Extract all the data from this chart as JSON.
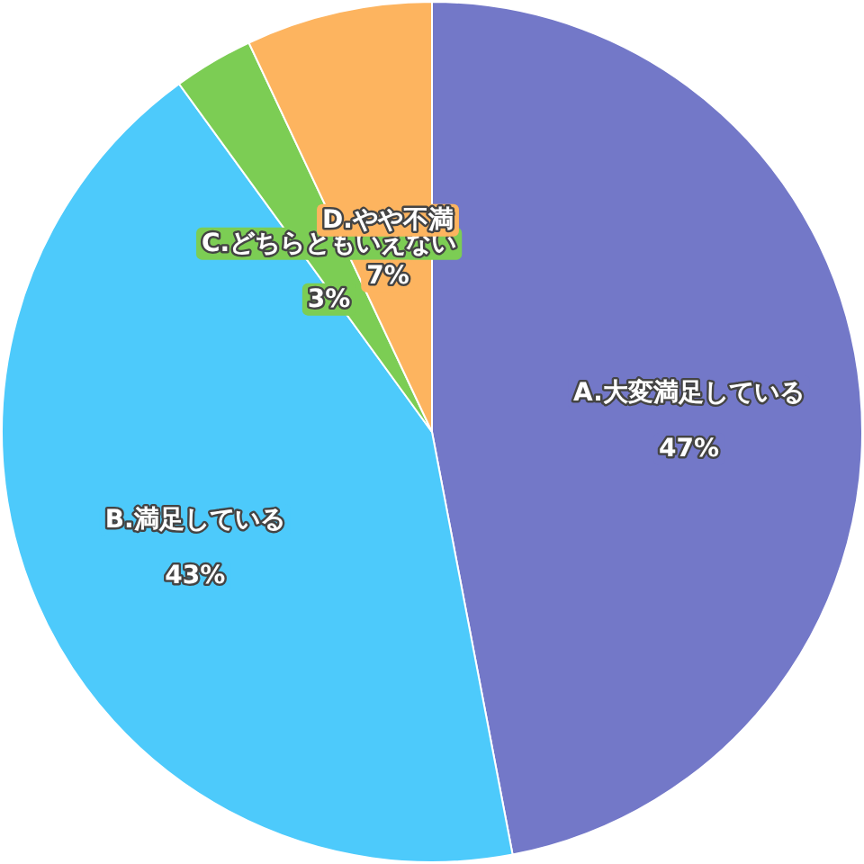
{
  "chart_data": {
    "type": "pie",
    "categories": [
      "A.大変満足している",
      "B.満足している",
      "C.どちらともいえない",
      "D.やや不満"
    ],
    "values": [
      47,
      43,
      3,
      7
    ],
    "value_labels": [
      "47%",
      "43%",
      "3%",
      "7%"
    ],
    "colors": [
      "#7378c8",
      "#4dcafb",
      "#7ccd54",
      "#fdb45f"
    ]
  }
}
